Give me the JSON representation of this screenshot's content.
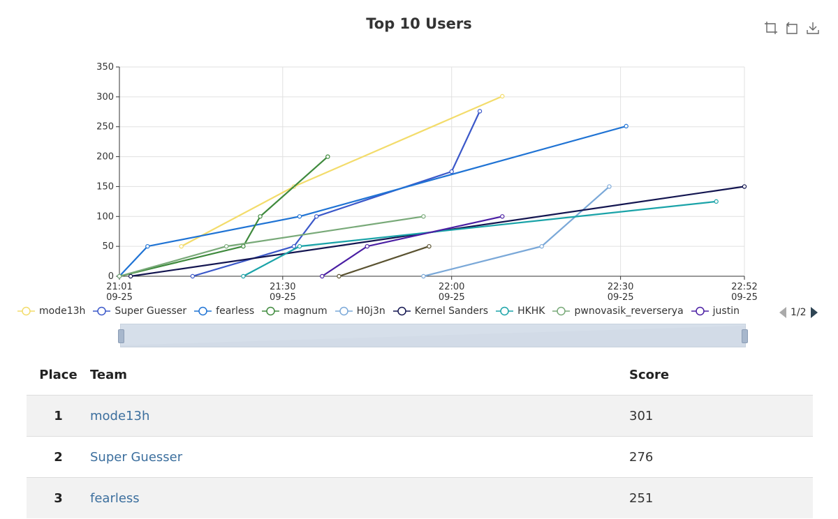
{
  "chart_data": {
    "type": "line",
    "title": "Top 10 Users",
    "ylim": [
      0,
      350
    ],
    "yticks": [
      0,
      50,
      100,
      150,
      200,
      250,
      300,
      350
    ],
    "xlim": [
      "21:01",
      "22:52"
    ],
    "xticks": [
      {
        "time": "21:01",
        "date": "09-25"
      },
      {
        "time": "21:30",
        "date": "09-25"
      },
      {
        "time": "22:00",
        "date": "09-25"
      },
      {
        "time": "22:30",
        "date": "09-25"
      },
      {
        "time": "22:52",
        "date": "09-25"
      }
    ],
    "grid": true,
    "legend_position": "bottom",
    "series": [
      {
        "name": "mode13h",
        "color": "#f3dc6b",
        "points": [
          [
            "21:12",
            50
          ],
          [
            "21:32",
            150
          ],
          [
            "22:09",
            301
          ]
        ]
      },
      {
        "name": "Super Guesser",
        "color": "#3b58c9",
        "points": [
          [
            "21:14",
            0
          ],
          [
            "21:32",
            50
          ],
          [
            "21:36",
            100
          ],
          [
            "22:00",
            175
          ],
          [
            "22:05",
            276
          ]
        ]
      },
      {
        "name": "fearless",
        "color": "#1f73d4",
        "points": [
          [
            "21:01",
            0
          ],
          [
            "21:06",
            50
          ],
          [
            "21:33",
            100
          ],
          [
            "22:31",
            251
          ]
        ]
      },
      {
        "name": "magnum",
        "color": "#3f8a3d",
        "points": [
          [
            "21:01",
            0
          ],
          [
            "21:23",
            50
          ],
          [
            "21:26",
            100
          ],
          [
            "21:38",
            200
          ]
        ]
      },
      {
        "name": "H0j3n",
        "color": "#7aa8d8",
        "points": [
          [
            "21:55",
            0
          ],
          [
            "22:16",
            50
          ],
          [
            "22:28",
            150
          ]
        ]
      },
      {
        "name": "Kernel Sanders",
        "color": "#131550",
        "points": [
          [
            "21:03",
            0
          ],
          [
            "22:52",
            150
          ]
        ]
      },
      {
        "name": "HKHK",
        "color": "#1aa3a8",
        "points": [
          [
            "21:23",
            0
          ],
          [
            "21:33",
            50
          ],
          [
            "22:47",
            125
          ]
        ]
      },
      {
        "name": "pwnovasik_reverserya",
        "color": "#78a978",
        "points": [
          [
            "21:01",
            0
          ],
          [
            "21:20",
            50
          ],
          [
            "21:55",
            100
          ]
        ]
      },
      {
        "name": "justin",
        "color": "#4a1ea3",
        "points": [
          [
            "21:37",
            0
          ],
          [
            "21:45",
            50
          ],
          [
            "22:09",
            100
          ]
        ]
      },
      {
        "name": "",
        "color": "#5a5230",
        "points": [
          [
            "21:40",
            0
          ],
          [
            "21:56",
            50
          ]
        ]
      }
    ]
  },
  "legend": {
    "items": [
      "mode13h",
      "Super Guesser",
      "fearless",
      "magnum",
      "H0j3n",
      "Kernel Sanders",
      "HKHK",
      "pwnovasik_reverserya",
      "justin"
    ],
    "page_label": "1/2"
  },
  "toolbox": {
    "icons": [
      "zoom-icon",
      "zoom-reset-icon",
      "download-icon"
    ]
  },
  "table": {
    "headers": {
      "place": "Place",
      "team": "Team",
      "score": "Score"
    },
    "rows": [
      {
        "place": "1",
        "team": "mode13h",
        "score": "301"
      },
      {
        "place": "2",
        "team": "Super Guesser",
        "score": "276"
      },
      {
        "place": "3",
        "team": "fearless",
        "score": "251"
      }
    ]
  }
}
